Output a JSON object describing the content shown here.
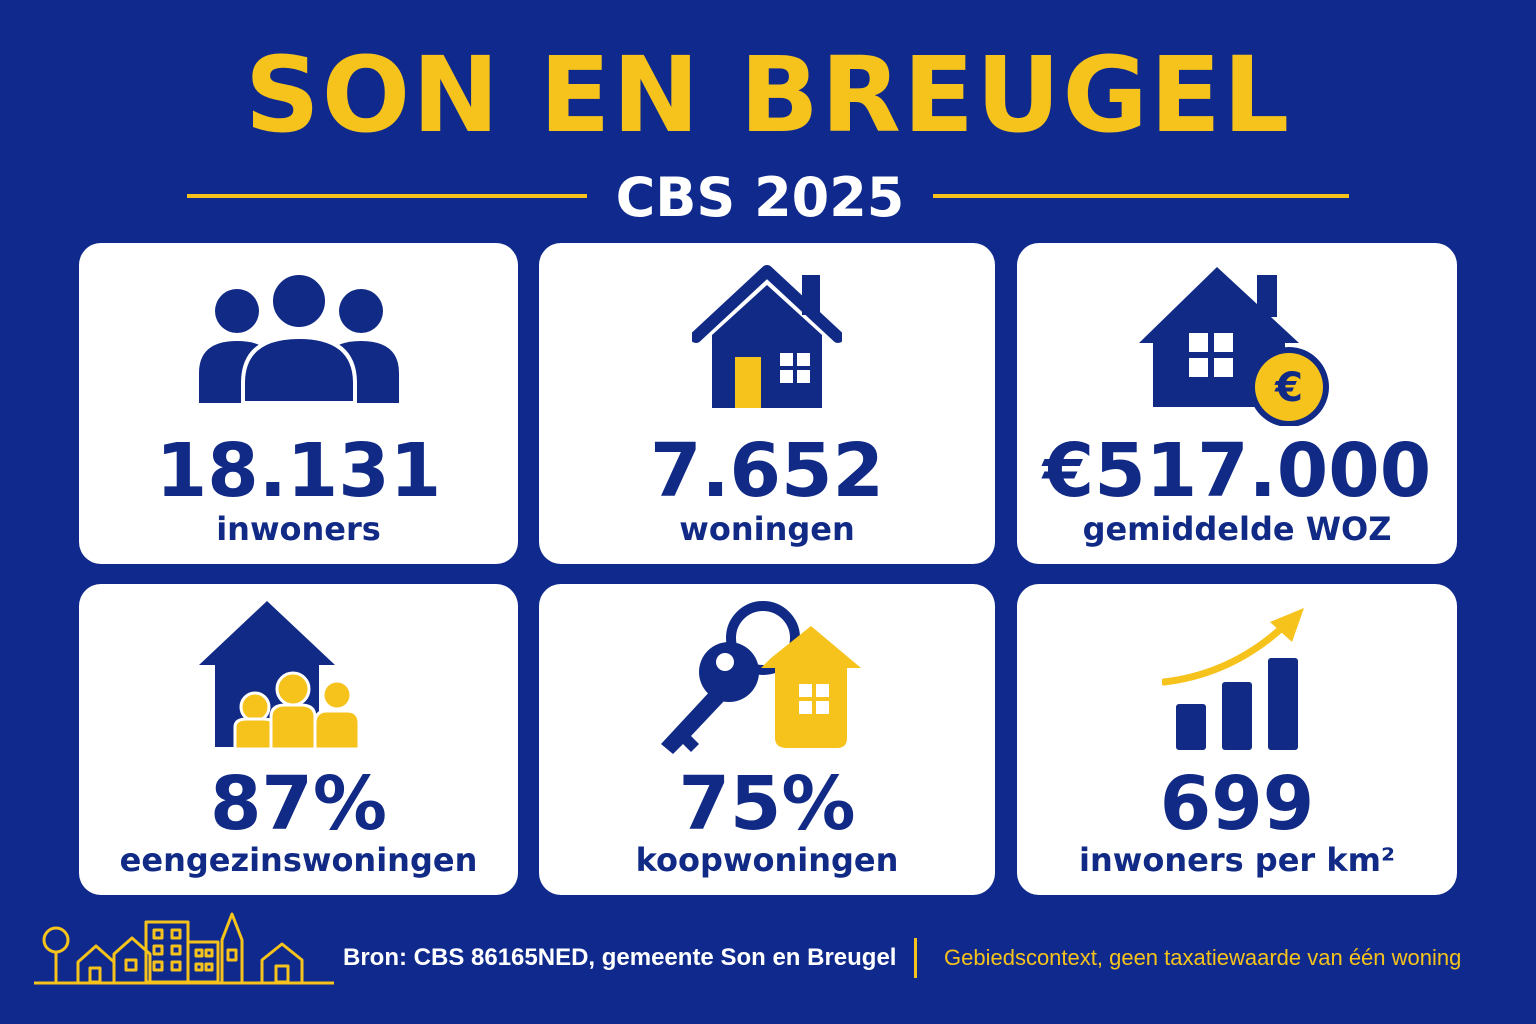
{
  "header": {
    "title": "SON EN BREUGEL",
    "subtitle": "CBS 2025"
  },
  "colors": {
    "background": "#0f2a8c",
    "accent": "#f6c21c",
    "card": "#ffffff",
    "text": "#102a86"
  },
  "stats": [
    {
      "icon": "people-icon",
      "value": "18.131",
      "label": "inwoners"
    },
    {
      "icon": "house-icon",
      "value": "7.652",
      "label": "woningen"
    },
    {
      "icon": "house-euro-icon",
      "value": "€517.000",
      "label": "gemiddelde WOZ"
    },
    {
      "icon": "family-house-icon",
      "value": "87%",
      "label": "eengezinswoningen"
    },
    {
      "icon": "key-house-icon",
      "value": "75%",
      "label": "koopwoningen"
    },
    {
      "icon": "growth-chart-icon",
      "value": "699",
      "label": "inwoners per km²"
    }
  ],
  "footer": {
    "icon": "village-skyline-icon",
    "source": "Bron: CBS 86165NED, gemeente Son en Breugel",
    "disclaimer": "Gebiedscontext, geen taxatiewaarde van één woning"
  }
}
